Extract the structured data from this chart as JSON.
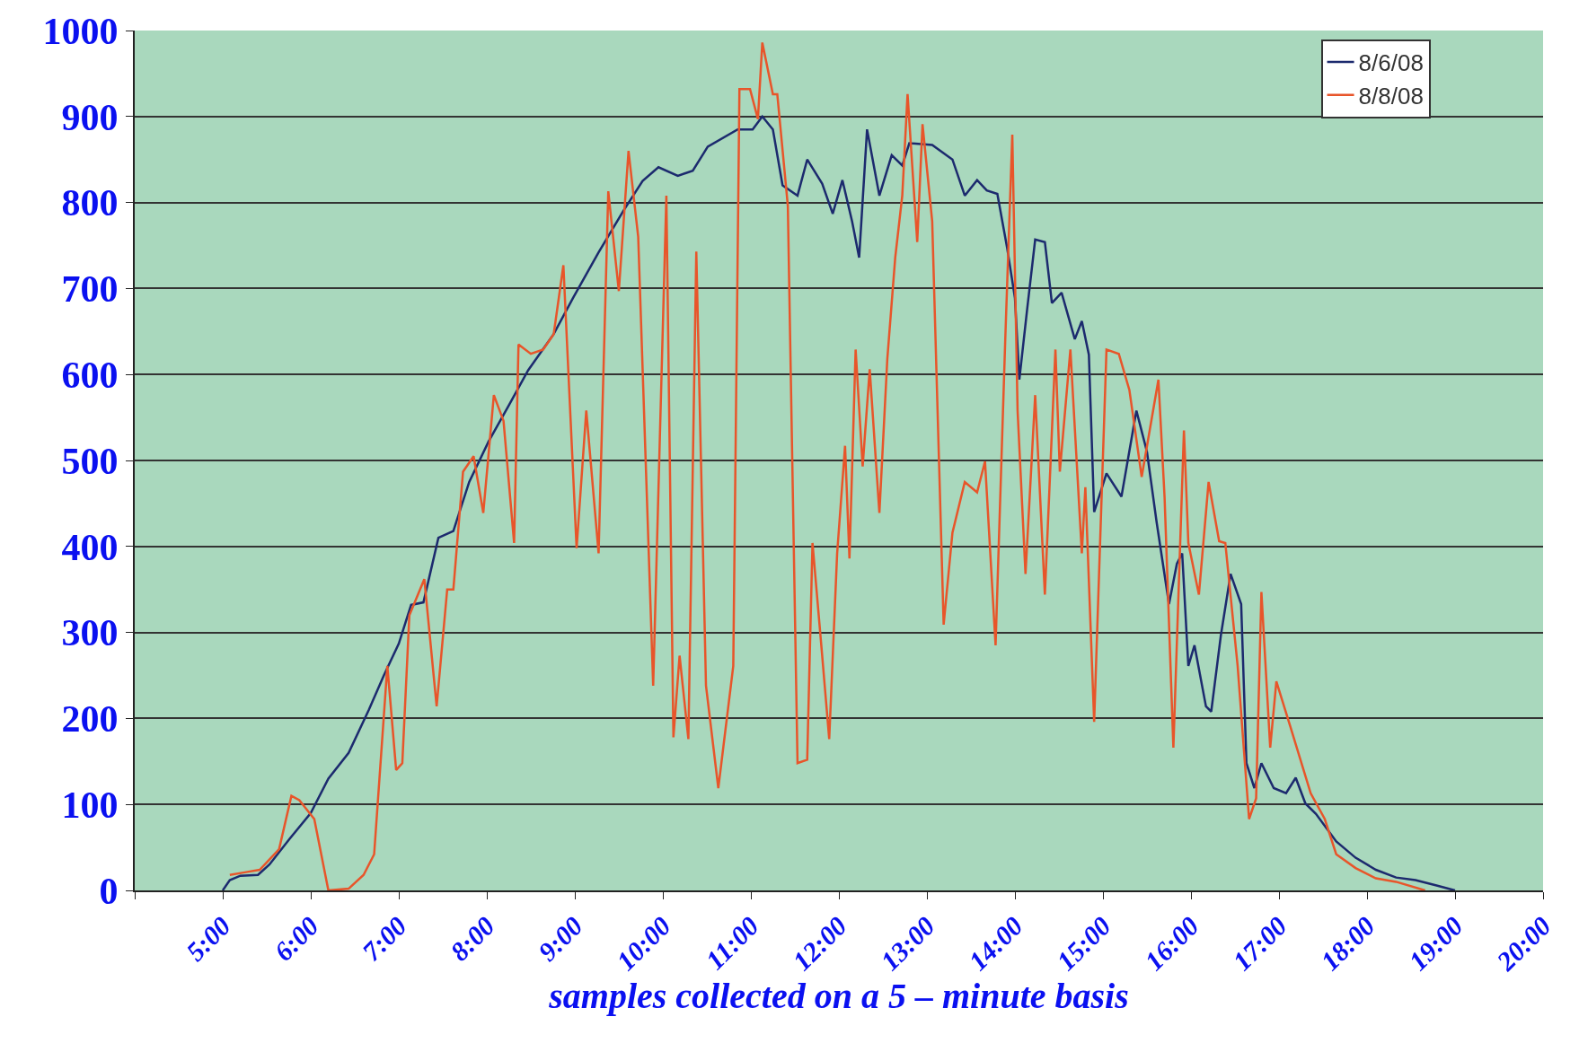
{
  "chart_data": {
    "type": "line",
    "xlabel": "samples collected on a 5 – minute basis",
    "xlim": [
      4,
      20
    ],
    "xticks": [
      {
        "value": 4,
        "label": null
      },
      {
        "value": 5,
        "label": "5:00"
      },
      {
        "value": 6,
        "label": "6:00"
      },
      {
        "value": 7,
        "label": "7:00"
      },
      {
        "value": 8,
        "label": "8:00"
      },
      {
        "value": 9,
        "label": "9:00"
      },
      {
        "value": 10,
        "label": "10:00"
      },
      {
        "value": 11,
        "label": "11:00"
      },
      {
        "value": 12,
        "label": "12:00"
      },
      {
        "value": 13,
        "label": "13:00"
      },
      {
        "value": 14,
        "label": "14:00"
      },
      {
        "value": 15,
        "label": "15:00"
      },
      {
        "value": 16,
        "label": "16:00"
      },
      {
        "value": 17,
        "label": "17:00"
      },
      {
        "value": 18,
        "label": "18:00"
      },
      {
        "value": 19,
        "label": "19:00"
      },
      {
        "value": 20,
        "label": "20:00"
      }
    ],
    "ylim": [
      0,
      1000
    ],
    "yticks": [
      0,
      100,
      200,
      300,
      400,
      500,
      600,
      700,
      800,
      900,
      1000
    ],
    "grid": "y",
    "legend": "top right",
    "marker": "none",
    "line_style": "solid",
    "series": [
      {
        "name": "8/6/08",
        "color": "#1c2a6e",
        "x": [
          5.0,
          5.08,
          5.2,
          5.4,
          5.53,
          5.76,
          6.0,
          6.2,
          6.43,
          6.66,
          6.83,
          7.0,
          7.14,
          7.28,
          7.45,
          7.62,
          7.8,
          8.02,
          8.25,
          8.47,
          8.76,
          8.98,
          9.27,
          9.55,
          9.77,
          9.95,
          10.17,
          10.34,
          10.51,
          10.85,
          11.02,
          11.13,
          11.25,
          11.36,
          11.53,
          11.64,
          11.81,
          11.93,
          12.04,
          12.15,
          12.23,
          12.32,
          12.46,
          12.6,
          12.72,
          12.8,
          13.06,
          13.29,
          13.43,
          13.57,
          13.68,
          13.8,
          13.91,
          14.0,
          14.05,
          14.14,
          14.23,
          14.34,
          14.42,
          14.53,
          14.68,
          14.76,
          14.84,
          14.9,
          15.04,
          15.21,
          15.38,
          15.5,
          15.61,
          15.75,
          15.84,
          15.9,
          15.97,
          16.04,
          16.17,
          16.23,
          16.34,
          16.45,
          16.57,
          16.63,
          16.72,
          16.8,
          16.94,
          17.08,
          17.19,
          17.3,
          17.42,
          17.65,
          17.87,
          18.1,
          18.33,
          18.55,
          18.78,
          19.0
        ],
        "values": [
          0,
          12,
          17,
          18,
          30,
          60,
          90,
          130,
          160,
          210,
          250,
          287,
          332,
          335,
          410,
          418,
          475,
          522,
          564,
          605,
          647,
          689,
          742,
          790,
          825,
          841,
          831,
          837,
          865,
          885,
          885,
          900,
          885,
          820,
          808,
          850,
          822,
          787,
          826,
          778,
          736,
          885,
          808,
          855,
          843,
          869,
          867,
          850,
          808,
          826,
          814,
          810,
          748,
          689,
          594,
          677,
          757,
          754,
          683,
          695,
          641,
          662,
          623,
          440,
          485,
          458,
          558,
          510,
          428,
          333,
          380,
          392,
          261,
          285,
          214,
          208,
          297,
          368,
          333,
          148,
          119,
          148,
          119,
          113,
          131,
          101,
          89,
          57,
          38,
          24,
          15,
          12,
          6,
          0
        ]
      },
      {
        "name": "8/8/08",
        "color": "#e8552a",
        "x": [
          5.08,
          5.25,
          5.42,
          5.64,
          5.78,
          5.87,
          6.04,
          6.2,
          6.43,
          6.6,
          6.72,
          6.87,
          6.97,
          7.04,
          7.12,
          7.29,
          7.43,
          7.55,
          7.62,
          7.73,
          7.85,
          7.96,
          8.08,
          8.19,
          8.31,
          8.36,
          8.5,
          8.64,
          8.76,
          8.87,
          9.02,
          9.13,
          9.27,
          9.38,
          9.5,
          9.61,
          9.72,
          9.89,
          10.04,
          10.12,
          10.19,
          10.29,
          10.38,
          10.49,
          10.63,
          10.8,
          10.87,
          10.99,
          11.08,
          11.13,
          11.25,
          11.3,
          11.42,
          11.53,
          11.64,
          11.7,
          11.81,
          11.89,
          11.98,
          12.07,
          12.12,
          12.19,
          12.27,
          12.35,
          12.46,
          12.55,
          12.64,
          12.72,
          12.78,
          12.89,
          12.95,
          13.06,
          13.19,
          13.29,
          13.43,
          13.57,
          13.66,
          13.78,
          13.89,
          13.97,
          14.03,
          14.12,
          14.23,
          14.34,
          14.46,
          14.51,
          14.63,
          14.76,
          14.8,
          14.9,
          15.04,
          15.18,
          15.3,
          15.44,
          15.63,
          15.7,
          15.8,
          15.92,
          15.97,
          16.09,
          16.2,
          16.32,
          16.39,
          16.53,
          16.66,
          16.74,
          16.8,
          16.9,
          16.97,
          17.13,
          17.36,
          17.52,
          17.65,
          17.87,
          18.1,
          18.33,
          18.66
        ],
        "values": [
          18,
          21,
          24,
          48,
          110,
          105,
          83,
          0,
          2,
          18,
          42,
          261,
          140,
          148,
          320,
          362,
          214,
          350,
          350,
          487,
          505,
          439,
          576,
          546,
          404,
          635,
          624,
          629,
          647,
          727,
          398,
          558,
          392,
          813,
          697,
          860,
          760,
          238,
          808,
          178,
          273,
          176,
          743,
          238,
          119,
          261,
          932,
          932,
          897,
          986,
          926,
          926,
          796,
          148,
          152,
          404,
          273,
          176,
          392,
          517,
          386,
          629,
          493,
          606,
          439,
          618,
          736,
          808,
          926,
          754,
          891,
          778,
          309,
          416,
          475,
          463,
          499,
          285,
          641,
          879,
          558,
          368,
          576,
          344,
          629,
          487,
          629,
          392,
          469,
          196,
          629,
          624,
          582,
          481,
          594,
          457,
          166,
          535,
          404,
          344,
          475,
          406,
          404,
          261,
          83,
          107,
          347,
          166,
          243,
          190,
          113,
          83,
          42,
          26,
          14,
          10,
          0
        ]
      }
    ]
  }
}
